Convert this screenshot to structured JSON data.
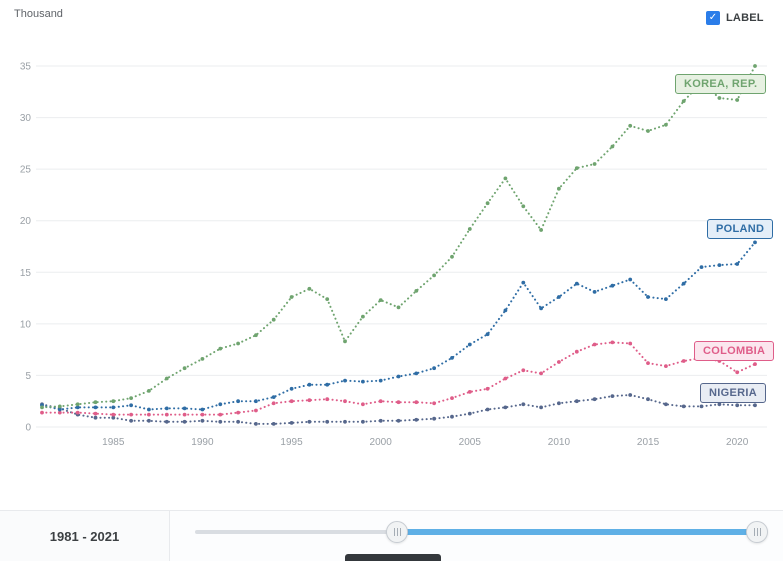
{
  "header": {
    "unit_label": "Thousand",
    "label_toggle": {
      "label": "LABEL",
      "checked": true,
      "check_icon": "✓",
      "accent_color": "#2b7de9"
    }
  },
  "chart_data": {
    "type": "line",
    "title": "",
    "ylabel": "Thousand",
    "xlabel": "",
    "line_style": "dotted",
    "grid": true,
    "legend_position": "labels-on-chart-right",
    "ylim": [
      0,
      35
    ],
    "y_ticks": [
      0,
      5,
      10,
      15,
      20,
      25,
      30,
      35
    ],
    "x_ticks": [
      1985,
      1990,
      1995,
      2000,
      2005,
      2010,
      2015,
      2020
    ],
    "x": [
      1981,
      1982,
      1983,
      1984,
      1985,
      1986,
      1987,
      1988,
      1989,
      1990,
      1991,
      1992,
      1993,
      1994,
      1995,
      1996,
      1997,
      1998,
      1999,
      2000,
      2001,
      2002,
      2003,
      2004,
      2005,
      2006,
      2007,
      2008,
      2009,
      2010,
      2011,
      2012,
      2013,
      2014,
      2015,
      2016,
      2017,
      2018,
      2019,
      2020,
      2021
    ],
    "series": [
      {
        "name": "KOREA, REP.",
        "color": "#6fa46f",
        "label_bg": "#e7f1e2",
        "values": [
          1.9,
          2.0,
          2.2,
          2.4,
          2.5,
          2.8,
          3.5,
          4.7,
          5.7,
          6.6,
          7.6,
          8.1,
          8.9,
          10.4,
          12.6,
          13.4,
          12.4,
          8.3,
          10.7,
          12.3,
          11.6,
          13.2,
          14.7,
          16.5,
          19.2,
          21.7,
          24.1,
          21.4,
          19.1,
          23.1,
          25.1,
          25.5,
          27.2,
          29.2,
          28.7,
          29.3,
          31.6,
          33.4,
          31.9,
          31.7,
          35.0
        ]
      },
      {
        "name": "POLAND",
        "color": "#2f6da5",
        "label_bg": "#e4eef8",
        "values": [
          2.1,
          1.7,
          1.9,
          1.9,
          1.9,
          2.1,
          1.7,
          1.8,
          1.8,
          1.7,
          2.2,
          2.5,
          2.5,
          2.9,
          3.7,
          4.1,
          4.1,
          4.5,
          4.4,
          4.5,
          4.9,
          5.2,
          5.7,
          6.7,
          8.0,
          9.0,
          11.3,
          14.0,
          11.5,
          12.6,
          13.9,
          13.1,
          13.7,
          14.3,
          12.6,
          12.4,
          13.9,
          15.5,
          15.7,
          15.8,
          17.9
        ]
      },
      {
        "name": "COLOMBIA",
        "color": "#df5d89",
        "label_bg": "#fbe6ee",
        "values": [
          1.4,
          1.4,
          1.4,
          1.3,
          1.2,
          1.2,
          1.2,
          1.2,
          1.2,
          1.2,
          1.2,
          1.4,
          1.6,
          2.3,
          2.5,
          2.6,
          2.7,
          2.5,
          2.2,
          2.5,
          2.4,
          2.4,
          2.3,
          2.8,
          3.4,
          3.7,
          4.7,
          5.5,
          5.2,
          6.3,
          7.3,
          8.0,
          8.2,
          8.1,
          6.2,
          5.9,
          6.4,
          6.7,
          6.4,
          5.3,
          6.1
        ]
      },
      {
        "name": "NIGERIA",
        "color": "#56678c",
        "label_bg": "#e9edf4",
        "values": [
          2.2,
          1.8,
          1.2,
          0.9,
          0.9,
          0.6,
          0.6,
          0.5,
          0.5,
          0.6,
          0.5,
          0.5,
          0.3,
          0.3,
          0.4,
          0.5,
          0.5,
          0.5,
          0.5,
          0.6,
          0.6,
          0.7,
          0.8,
          1.0,
          1.3,
          1.7,
          1.9,
          2.2,
          1.9,
          2.3,
          2.5,
          2.7,
          3.0,
          3.1,
          2.7,
          2.2,
          2.0,
          2.0,
          2.2,
          2.1,
          2.1
        ]
      }
    ]
  },
  "footer": {
    "range_label": "1981 - 2021",
    "slider": {
      "accent_color": "#5fb0e6"
    }
  }
}
